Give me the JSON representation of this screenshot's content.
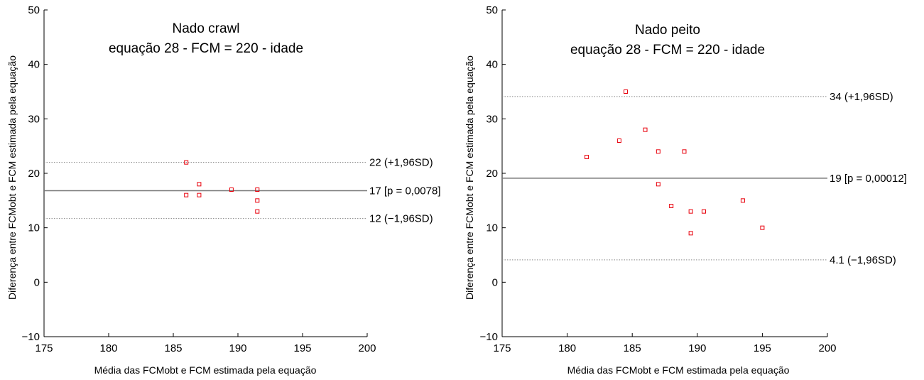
{
  "chart_data": [
    {
      "type": "scatter",
      "title_line1": "Nado crawl",
      "title_line2": "equação 28 - FCM = 220 - idade",
      "xlabel": "Média das FCMobt e FCM estimada pela equação",
      "ylabel": "Diferença entre FCMobt e FCM estimada pela equação",
      "xlim": [
        175,
        200
      ],
      "ylim": [
        -10,
        50
      ],
      "xticks": [
        175,
        180,
        185,
        190,
        195,
        200
      ],
      "yticks": [
        -10,
        0,
        10,
        20,
        30,
        40,
        50
      ],
      "xtick_labels": [
        "175",
        "180",
        "185",
        "190",
        "195",
        "200"
      ],
      "ytick_labels": [
        "−10",
        "0",
        "10",
        "20",
        "30",
        "40",
        "50"
      ],
      "grid": false,
      "marker_color": "#e8000b",
      "points": [
        {
          "x": 186,
          "y": 22
        },
        {
          "x": 186,
          "y": 16
        },
        {
          "x": 187,
          "y": 18
        },
        {
          "x": 187,
          "y": 16
        },
        {
          "x": 189.5,
          "y": 17
        },
        {
          "x": 191.5,
          "y": 17
        },
        {
          "x": 191.5,
          "y": 15
        },
        {
          "x": 191.5,
          "y": 13
        }
      ],
      "lines": [
        {
          "y": 22,
          "label": "22 (+1,96SD)",
          "style": "dotted"
        },
        {
          "y": 16.8,
          "label": "17 [p = 0,0078]",
          "style": "solid"
        },
        {
          "y": 11.7,
          "label": "12 (−1,96SD)",
          "style": "dotted"
        }
      ]
    },
    {
      "type": "scatter",
      "title_line1": "Nado peito",
      "title_line2": "equação 28 - FCM = 220 - idade",
      "xlabel": "Média das FCMobt e FCM estimada pela equação",
      "ylabel": "Diferença entre FCMobt e FCM estimada pela equação",
      "xlim": [
        175,
        200
      ],
      "ylim": [
        -10,
        50
      ],
      "xticks": [
        175,
        180,
        185,
        190,
        195,
        200
      ],
      "yticks": [
        -10,
        0,
        10,
        20,
        30,
        40,
        50
      ],
      "xtick_labels": [
        "175",
        "180",
        "185",
        "190",
        "195",
        "200"
      ],
      "ytick_labels": [
        "−10",
        "0",
        "10",
        "20",
        "30",
        "40",
        "50"
      ],
      "grid": false,
      "marker_color": "#e8000b",
      "points": [
        {
          "x": 181.5,
          "y": 23
        },
        {
          "x": 184,
          "y": 26
        },
        {
          "x": 184.5,
          "y": 35
        },
        {
          "x": 186,
          "y": 28
        },
        {
          "x": 187,
          "y": 24
        },
        {
          "x": 187,
          "y": 18
        },
        {
          "x": 188,
          "y": 14
        },
        {
          "x": 189,
          "y": 24
        },
        {
          "x": 189.5,
          "y": 13
        },
        {
          "x": 189.5,
          "y": 9
        },
        {
          "x": 190.5,
          "y": 13
        },
        {
          "x": 193.5,
          "y": 15
        },
        {
          "x": 195,
          "y": 10
        }
      ],
      "lines": [
        {
          "y": 34.1,
          "label": "34 (+1,96SD)",
          "style": "dotted"
        },
        {
          "y": 19.1,
          "label": "19 [p = 0,00012]",
          "style": "solid"
        },
        {
          "y": 4.1,
          "label": "4.1 (−1,96SD)",
          "style": "dotted"
        }
      ]
    }
  ]
}
